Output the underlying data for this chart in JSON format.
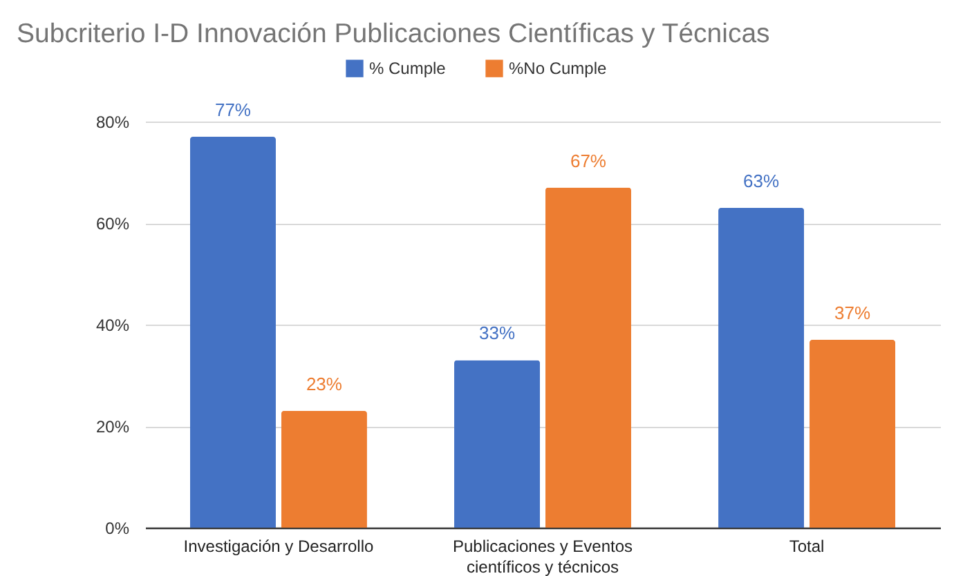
{
  "chart_data": {
    "type": "bar",
    "title": "Subcriterio I-D Innovación Publicaciones Científicas y Técnicas",
    "categories": [
      "Investigación y Desarrollo",
      "Publicaciones y Eventos científicos y técnicos",
      "Total"
    ],
    "series": [
      {
        "name": "% Cumple",
        "color": "#4472c4",
        "values": [
          77,
          33,
          63
        ],
        "value_labels": [
          "77%",
          "33%",
          "63%"
        ]
      },
      {
        "name": "%No Cumple",
        "color": "#ed7d31",
        "values": [
          23,
          67,
          37
        ],
        "value_labels": [
          "23%",
          "67%",
          "37%"
        ]
      }
    ],
    "ylim": [
      0,
      80
    ],
    "yticks": [
      {
        "value": 0,
        "label": "0%"
      },
      {
        "value": 20,
        "label": "20%"
      },
      {
        "value": 40,
        "label": "40%"
      },
      {
        "value": 60,
        "label": "60%"
      },
      {
        "value": 80,
        "label": "80%"
      }
    ],
    "grid": "y",
    "legend": "top"
  }
}
